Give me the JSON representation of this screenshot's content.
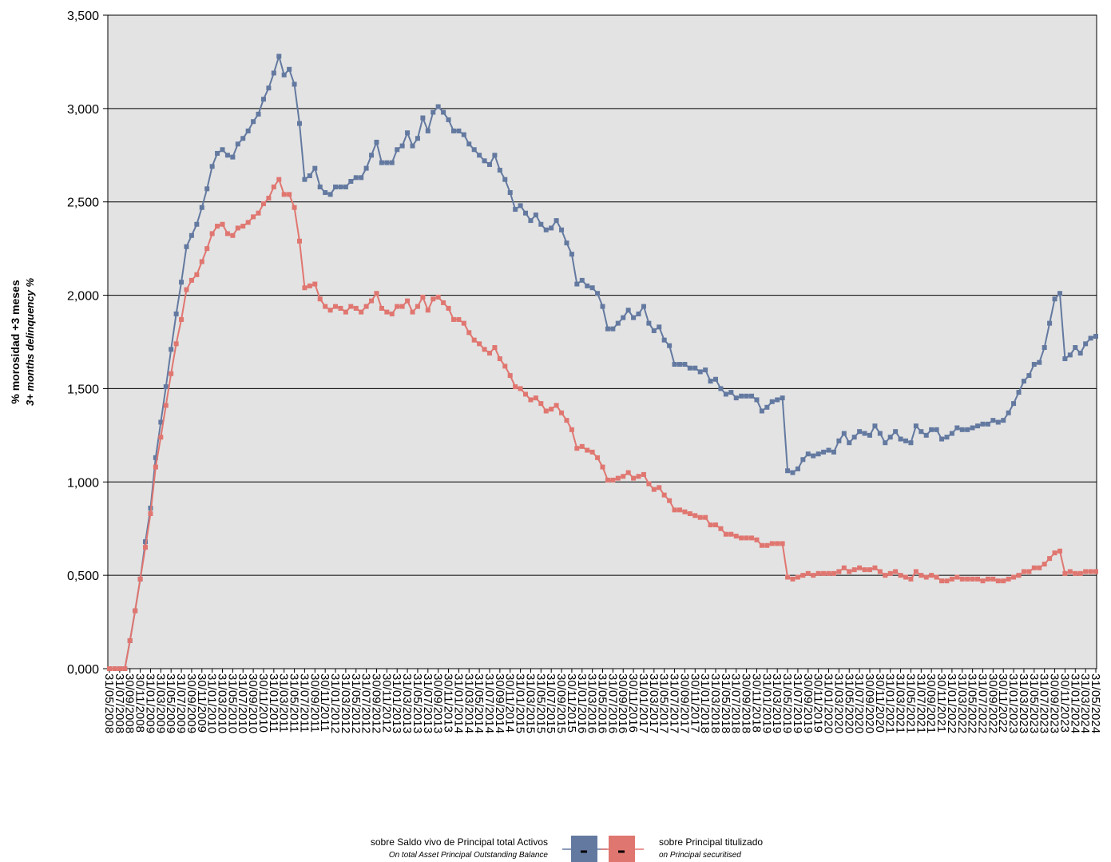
{
  "chart_data": {
    "type": "line",
    "y_label": "% morosidad +3 meses",
    "y_label_en": "3+ months delinquency %",
    "ylim": [
      0,
      3.5
    ],
    "yticks": [
      {
        "value": 0,
        "label": "0,000"
      },
      {
        "value": 0.5,
        "label": "0,500"
      },
      {
        "value": 1,
        "label": "1,000"
      },
      {
        "value": 1.5,
        "label": "1,500"
      },
      {
        "value": 2,
        "label": "2,000"
      },
      {
        "value": 2.5,
        "label": "2,500"
      },
      {
        "value": 3,
        "label": "3,000"
      },
      {
        "value": 3.5,
        "label": "3,500"
      }
    ],
    "grid": true,
    "categories": [
      "31/05/2008",
      null,
      "31/07/2008",
      null,
      "30/09/2008",
      null,
      "30/11/2008",
      null,
      "31/01/2009",
      null,
      "31/03/2009",
      null,
      "31/05/2009",
      null,
      "31/07/2009",
      null,
      "30/09/2009",
      null,
      "30/11/2009",
      null,
      "31/01/2010",
      null,
      "31/03/2010",
      null,
      "31/05/2010",
      null,
      "31/07/2010",
      null,
      "30/09/2010",
      null,
      "30/11/2010",
      null,
      "31/01/2011",
      null,
      "31/03/2011",
      null,
      "31/05/2011",
      null,
      "31/07/2011",
      null,
      "30/09/2011",
      null,
      "30/11/2011",
      null,
      "31/01/2012",
      null,
      "31/03/2012",
      null,
      "31/05/2012",
      null,
      "31/07/2012",
      null,
      "30/09/2012",
      null,
      "30/11/2012",
      null,
      "31/01/2013",
      null,
      "31/03/2013",
      null,
      "31/05/2013",
      null,
      "31/07/2013",
      null,
      "30/09/2013",
      null,
      "30/11/2013",
      null,
      "31/01/2014",
      null,
      "31/03/2014",
      null,
      "31/05/2014",
      null,
      "31/07/2014",
      null,
      "30/09/2014",
      null,
      "30/11/2014",
      null,
      "31/01/2015",
      null,
      "31/03/2015",
      null,
      "31/05/2015",
      null,
      "31/07/2015",
      null,
      "30/09/2015",
      null,
      "30/11/2015",
      null,
      "31/01/2016",
      null,
      "31/03/2016",
      null,
      "31/05/2016",
      null,
      "31/07/2016",
      null,
      "30/09/2016",
      null,
      "30/11/2016",
      null,
      "31/01/2017",
      null,
      "31/03/2017",
      null,
      "31/05/2017",
      null,
      "31/07/2017",
      null,
      "30/09/2017",
      null,
      "30/11/2017",
      null,
      "31/01/2018",
      null,
      "31/03/2018",
      null,
      "31/05/2018",
      null,
      "31/07/2018",
      null,
      "30/09/2018",
      null,
      "30/11/2018",
      null,
      "31/01/2019",
      null,
      "31/03/2019",
      null,
      "31/05/2019",
      null,
      "31/07/2019",
      null,
      "30/09/2019",
      null,
      "30/11/2019",
      null,
      "31/01/2020",
      null,
      "31/03/2020",
      null,
      "31/05/2020",
      null,
      "31/07/2020",
      null,
      "30/09/2020",
      null,
      "30/11/2020",
      null,
      "31/01/2021",
      null,
      "31/03/2021",
      null,
      "31/05/2021",
      null,
      "31/07/2021",
      null,
      "30/09/2021",
      null,
      "30/11/2021",
      null,
      "31/01/2022",
      null,
      "31/03/2022",
      null,
      "31/05/2022",
      null,
      "31/07/2022",
      null,
      "30/09/2022",
      null,
      "30/11/2022",
      null,
      "31/01/2023",
      null,
      "31/03/2023",
      null,
      "31/05/2023",
      null,
      "31/07/2023",
      null,
      "30/09/2023",
      null,
      "30/11/2023",
      null,
      "31/01/2024",
      null,
      "31/03/2024",
      null,
      "31/05/2024"
    ],
    "series": [
      {
        "name": "sobre Saldo vivo de Principal total Activos",
        "name_en": "On total Asset Principal Outstanding Balance",
        "color": "#6379a0",
        "values": [
          0,
          0,
          0,
          0,
          0.15,
          0.31,
          0.48,
          0.68,
          0.86,
          1.13,
          1.32,
          1.51,
          1.71,
          1.9,
          2.07,
          2.26,
          2.32,
          2.38,
          2.47,
          2.57,
          2.69,
          2.76,
          2.78,
          2.75,
          2.74,
          2.81,
          2.84,
          2.88,
          2.93,
          2.97,
          3.05,
          3.11,
          3.19,
          3.28,
          3.18,
          3.21,
          3.13,
          2.92,
          2.62,
          2.64,
          2.68,
          2.58,
          2.55,
          2.54,
          2.58,
          2.58,
          2.58,
          2.61,
          2.63,
          2.63,
          2.68,
          2.75,
          2.82,
          2.71,
          2.71,
          2.71,
          2.78,
          2.8,
          2.87,
          2.8,
          2.84,
          2.95,
          2.88,
          2.98,
          3.01,
          2.98,
          2.94,
          2.88,
          2.88,
          2.86,
          2.81,
          2.78,
          2.75,
          2.72,
          2.7,
          2.75,
          2.67,
          2.62,
          2.55,
          2.46,
          2.48,
          2.44,
          2.4,
          2.43,
          2.38,
          2.35,
          2.36,
          2.4,
          2.35,
          2.28,
          2.22,
          2.06,
          2.08,
          2.05,
          2.04,
          2.01,
          1.94,
          1.82,
          1.82,
          1.85,
          1.88,
          1.92,
          1.88,
          1.9,
          1.94,
          1.85,
          1.81,
          1.83,
          1.76,
          1.73,
          1.63,
          1.63,
          1.63,
          1.61,
          1.61,
          1.59,
          1.6,
          1.54,
          1.55,
          1.5,
          1.47,
          1.48,
          1.45,
          1.46,
          1.46,
          1.46,
          1.44,
          1.38,
          1.4,
          1.43,
          1.44,
          1.45,
          1.06,
          1.05,
          1.07,
          1.12,
          1.15,
          1.14,
          1.15,
          1.16,
          1.17,
          1.16,
          1.22,
          1.26,
          1.21,
          1.24,
          1.27,
          1.26,
          1.25,
          1.3,
          1.26,
          1.21,
          1.24,
          1.27,
          1.23,
          1.22,
          1.21,
          1.3,
          1.27,
          1.25,
          1.28,
          1.28,
          1.23,
          1.24,
          1.26,
          1.29,
          1.28,
          1.28,
          1.29,
          1.3,
          1.31,
          1.31,
          1.33,
          1.32,
          1.33,
          1.37,
          1.42,
          1.48,
          1.54,
          1.57,
          1.63,
          1.64,
          1.72,
          1.85,
          1.98,
          2.01,
          1.66,
          1.68,
          1.72,
          1.69,
          1.74,
          1.77,
          1.78
        ]
      },
      {
        "name": "sobre Principal titulizado",
        "name_en": "on Principal securitised",
        "color": "#e07670",
        "values": [
          0,
          0,
          0,
          0,
          0.15,
          0.31,
          0.48,
          0.65,
          0.83,
          1.08,
          1.24,
          1.41,
          1.58,
          1.74,
          1.87,
          2.03,
          2.08,
          2.11,
          2.18,
          2.25,
          2.33,
          2.37,
          2.38,
          2.33,
          2.32,
          2.36,
          2.37,
          2.39,
          2.42,
          2.44,
          2.49,
          2.52,
          2.58,
          2.62,
          2.54,
          2.54,
          2.47,
          2.29,
          2.04,
          2.05,
          2.06,
          1.98,
          1.94,
          1.92,
          1.94,
          1.93,
          1.91,
          1.94,
          1.93,
          1.91,
          1.94,
          1.97,
          2.01,
          1.93,
          1.91,
          1.9,
          1.94,
          1.94,
          1.97,
          1.91,
          1.94,
          1.99,
          1.92,
          1.98,
          1.99,
          1.96,
          1.93,
          1.87,
          1.87,
          1.85,
          1.8,
          1.76,
          1.74,
          1.71,
          1.69,
          1.72,
          1.66,
          1.62,
          1.57,
          1.51,
          1.5,
          1.47,
          1.44,
          1.45,
          1.42,
          1.38,
          1.39,
          1.41,
          1.37,
          1.33,
          1.28,
          1.18,
          1.19,
          1.17,
          1.16,
          1.13,
          1.08,
          1.01,
          1.01,
          1.02,
          1.03,
          1.05,
          1.02,
          1.03,
          1.04,
          0.99,
          0.96,
          0.97,
          0.93,
          0.9,
          0.85,
          0.85,
          0.84,
          0.83,
          0.82,
          0.81,
          0.81,
          0.77,
          0.77,
          0.75,
          0.72,
          0.72,
          0.71,
          0.7,
          0.7,
          0.7,
          0.69,
          0.66,
          0.66,
          0.67,
          0.67,
          0.67,
          0.49,
          0.48,
          0.49,
          0.5,
          0.51,
          0.5,
          0.51,
          0.51,
          0.51,
          0.51,
          0.52,
          0.54,
          0.52,
          0.53,
          0.54,
          0.53,
          0.53,
          0.54,
          0.52,
          0.5,
          0.51,
          0.52,
          0.5,
          0.49,
          0.48,
          0.52,
          0.5,
          0.49,
          0.5,
          0.49,
          0.47,
          0.47,
          0.48,
          0.49,
          0.48,
          0.48,
          0.48,
          0.48,
          0.47,
          0.48,
          0.48,
          0.47,
          0.47,
          0.48,
          0.49,
          0.5,
          0.52,
          0.52,
          0.54,
          0.54,
          0.56,
          0.59,
          0.62,
          0.63,
          0.51,
          0.52,
          0.51,
          0.51,
          0.52,
          0.52,
          0.52
        ]
      }
    ]
  }
}
